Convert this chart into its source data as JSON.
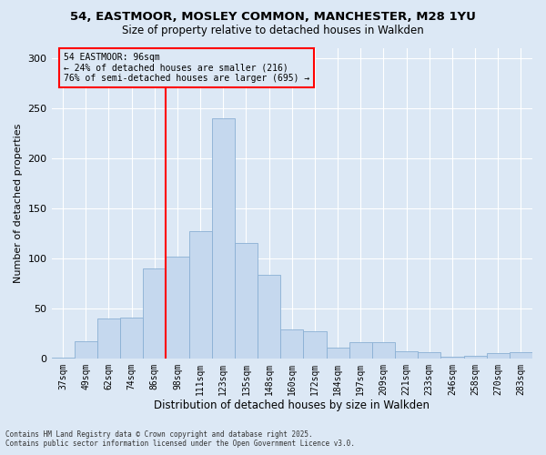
{
  "title_line1": "54, EASTMOOR, MOSLEY COMMON, MANCHESTER, M28 1YU",
  "title_line2": "Size of property relative to detached houses in Walkden",
  "xlabel": "Distribution of detached houses by size in Walkden",
  "ylabel": "Number of detached properties",
  "categories": [
    "37sqm",
    "49sqm",
    "62sqm",
    "74sqm",
    "86sqm",
    "98sqm",
    "111sqm",
    "123sqm",
    "135sqm",
    "148sqm",
    "160sqm",
    "172sqm",
    "184sqm",
    "197sqm",
    "209sqm",
    "221sqm",
    "233sqm",
    "246sqm",
    "258sqm",
    "270sqm",
    "283sqm"
  ],
  "bar_values": [
    1,
    17,
    40,
    41,
    90,
    102,
    127,
    240,
    115,
    83,
    29,
    27,
    11,
    16,
    16,
    7,
    6,
    2,
    3,
    5,
    6
  ],
  "bar_color": "#c5d8ee",
  "bar_edgecolor": "#8ab0d4",
  "bg_color": "#dce8f5",
  "grid_color": "#ffffff",
  "ylim": [
    0,
    310
  ],
  "yticks": [
    0,
    50,
    100,
    150,
    200,
    250,
    300
  ],
  "redline_index": 4.5,
  "annotation_text": "54 EASTMOOR: 96sqm\n← 24% of detached houses are smaller (216)\n76% of semi-detached houses are larger (695) →",
  "footer_line1": "Contains HM Land Registry data © Crown copyright and database right 2025.",
  "footer_line2": "Contains public sector information licensed under the Open Government Licence v3.0."
}
